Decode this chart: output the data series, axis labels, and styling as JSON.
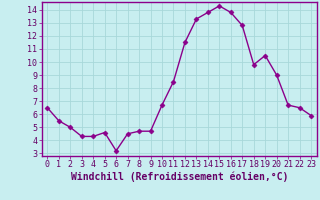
{
  "x": [
    0,
    1,
    2,
    3,
    4,
    5,
    6,
    7,
    8,
    9,
    10,
    11,
    12,
    13,
    14,
    15,
    16,
    17,
    18,
    19,
    20,
    21,
    22,
    23
  ],
  "y": [
    6.5,
    5.5,
    5.0,
    4.3,
    4.3,
    4.6,
    3.2,
    4.5,
    4.7,
    4.7,
    6.7,
    8.5,
    11.5,
    13.3,
    13.8,
    14.3,
    13.8,
    12.8,
    9.8,
    10.5,
    9.0,
    6.7,
    6.5,
    5.9
  ],
  "line_color": "#8B008B",
  "marker": "D",
  "marker_size": 2.5,
  "bg_color": "#c8eef0",
  "grid_color": "#a8d8da",
  "xlabel": "Windchill (Refroidissement éolien,°C)",
  "xlabel_fontsize": 7.0,
  "ylim": [
    2.8,
    14.6
  ],
  "xlim": [
    -0.5,
    23.5
  ],
  "yticks": [
    3,
    4,
    5,
    6,
    7,
    8,
    9,
    10,
    11,
    12,
    13,
    14
  ],
  "xticks": [
    0,
    1,
    2,
    3,
    4,
    5,
    6,
    7,
    8,
    9,
    10,
    11,
    12,
    13,
    14,
    15,
    16,
    17,
    18,
    19,
    20,
    21,
    22,
    23
  ],
  "tick_fontsize": 6.0,
  "axis_label_color": "#660066",
  "spine_color": "#8B008B",
  "border_color": "#8B008B"
}
